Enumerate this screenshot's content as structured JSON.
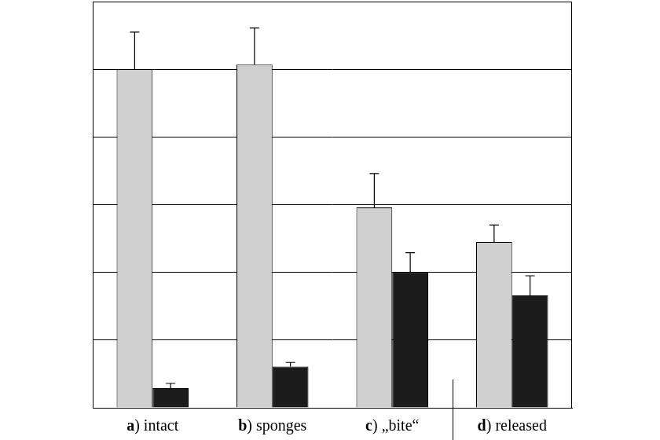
{
  "chart_data": {
    "type": "bar",
    "categories": [
      "a) intact",
      "b) sponges",
      "c) „bite“",
      "d) released"
    ],
    "series": [
      {
        "color": "#cfcfcf",
        "values": [
          5.0,
          5.07,
          2.96,
          2.45
        ],
        "errors": [
          0.55,
          0.54,
          0.5,
          0.25
        ]
      },
      {
        "color": "#1c1c1c",
        "values": [
          0.29,
          0.61,
          2.0,
          1.66
        ],
        "errors": [
          0.07,
          0.06,
          0.29,
          0.29
        ]
      }
    ],
    "ylim": [
      0,
      6
    ],
    "yticks": [
      0,
      1,
      2,
      3,
      4,
      5,
      6
    ],
    "grid": true,
    "tick_labels": false
  }
}
